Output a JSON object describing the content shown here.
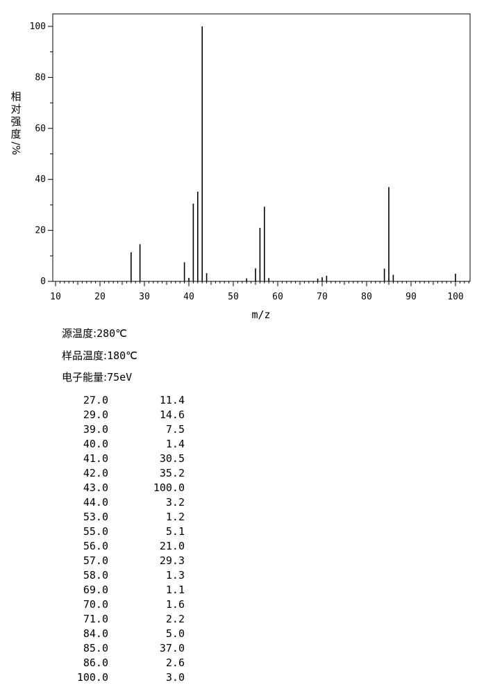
{
  "chart_data": {
    "type": "bar",
    "xlabel": "m/z",
    "ylabel_chars": [
      "相",
      "对",
      "强",
      "度"
    ],
    "ylabel_unit": "/%",
    "xlim": [
      10,
      104
    ],
    "ylim": [
      0,
      105
    ],
    "x_ticks": [
      10,
      20,
      30,
      40,
      50,
      60,
      70,
      80,
      90,
      100
    ],
    "y_ticks": [
      0,
      20,
      40,
      60,
      80,
      100
    ],
    "grid": false,
    "peaks": [
      {
        "mz": 27.0,
        "intensity": 11.4
      },
      {
        "mz": 29.0,
        "intensity": 14.6
      },
      {
        "mz": 39.0,
        "intensity": 7.5
      },
      {
        "mz": 40.0,
        "intensity": 1.4
      },
      {
        "mz": 41.0,
        "intensity": 30.5
      },
      {
        "mz": 42.0,
        "intensity": 35.2
      },
      {
        "mz": 43.0,
        "intensity": 100.0
      },
      {
        "mz": 44.0,
        "intensity": 3.2
      },
      {
        "mz": 53.0,
        "intensity": 1.2
      },
      {
        "mz": 55.0,
        "intensity": 5.1
      },
      {
        "mz": 56.0,
        "intensity": 21.0
      },
      {
        "mz": 57.0,
        "intensity": 29.3
      },
      {
        "mz": 58.0,
        "intensity": 1.3
      },
      {
        "mz": 69.0,
        "intensity": 1.1
      },
      {
        "mz": 70.0,
        "intensity": 1.6
      },
      {
        "mz": 71.0,
        "intensity": 2.2
      },
      {
        "mz": 84.0,
        "intensity": 5.0
      },
      {
        "mz": 85.0,
        "intensity": 37.0
      },
      {
        "mz": 86.0,
        "intensity": 2.6
      },
      {
        "mz": 100.0,
        "intensity": 3.0
      }
    ]
  },
  "conditions": [
    {
      "label": "源温度:",
      "value": "280℃"
    },
    {
      "label": "样品温度:",
      "value": "180℃"
    },
    {
      "label": "电子能量:",
      "value": "75eV"
    }
  ],
  "peak_table": [
    {
      "mz": "27.0",
      "intensity": "11.4"
    },
    {
      "mz": "29.0",
      "intensity": "14.6"
    },
    {
      "mz": "39.0",
      "intensity": "7.5"
    },
    {
      "mz": "40.0",
      "intensity": "1.4"
    },
    {
      "mz": "41.0",
      "intensity": "30.5"
    },
    {
      "mz": "42.0",
      "intensity": "35.2"
    },
    {
      "mz": "43.0",
      "intensity": "100.0"
    },
    {
      "mz": "44.0",
      "intensity": "3.2"
    },
    {
      "mz": "53.0",
      "intensity": "1.2"
    },
    {
      "mz": "55.0",
      "intensity": "5.1"
    },
    {
      "mz": "56.0",
      "intensity": "21.0"
    },
    {
      "mz": "57.0",
      "intensity": "29.3"
    },
    {
      "mz": "58.0",
      "intensity": "1.3"
    },
    {
      "mz": "69.0",
      "intensity": "1.1"
    },
    {
      "mz": "70.0",
      "intensity": "1.6"
    },
    {
      "mz": "71.0",
      "intensity": "2.2"
    },
    {
      "mz": "84.0",
      "intensity": "5.0"
    },
    {
      "mz": "85.0",
      "intensity": "37.0"
    },
    {
      "mz": "86.0",
      "intensity": "2.6"
    },
    {
      "mz": "100.0",
      "intensity": "3.0"
    }
  ]
}
